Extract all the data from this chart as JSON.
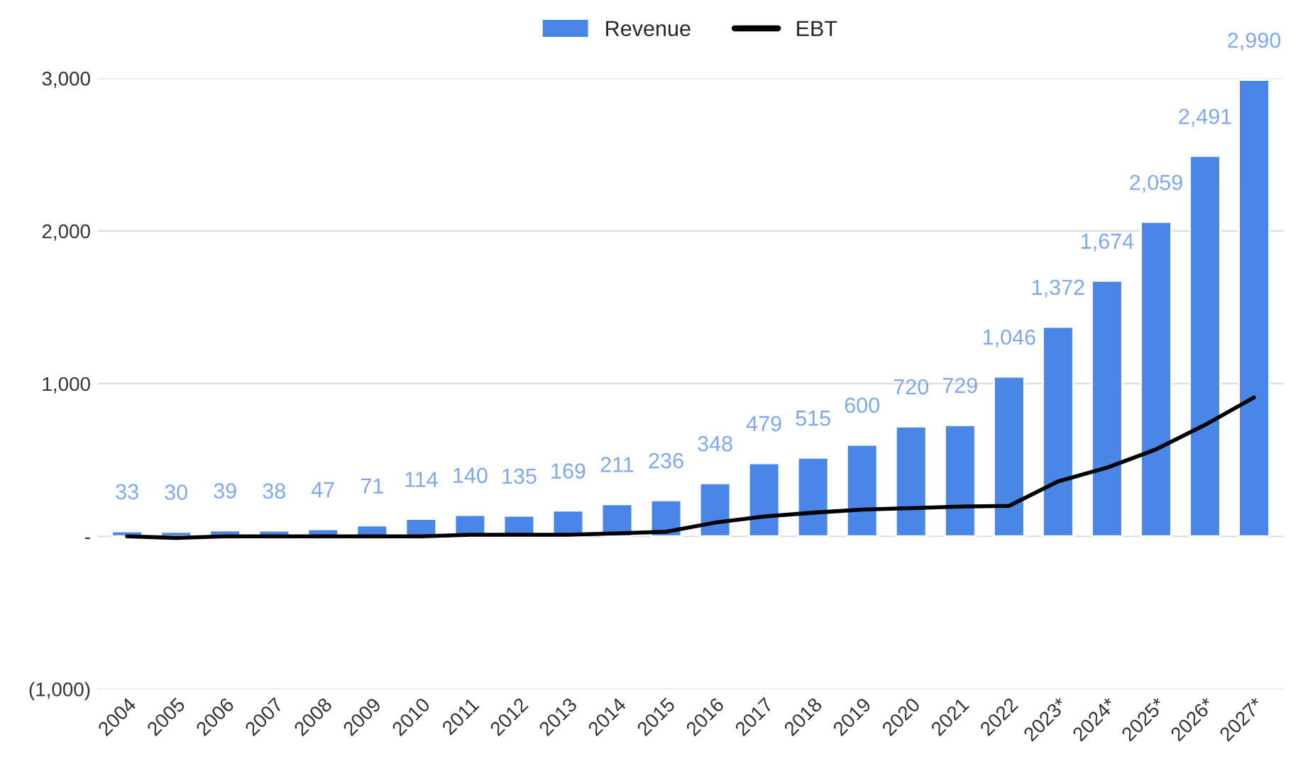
{
  "chart_data": {
    "type": "bar",
    "categories": [
      "2004",
      "2005",
      "2006",
      "2007",
      "2008",
      "2009",
      "2010",
      "2011",
      "2012",
      "2013",
      "2014",
      "2015",
      "2016",
      "2017",
      "2018",
      "2019",
      "2020",
      "2021",
      "2022",
      "2023*",
      "2024*",
      "2025*",
      "2026*",
      "2027*"
    ],
    "series": [
      {
        "name": "Revenue",
        "color": "#4a86e8",
        "values": [
          33,
          30,
          39,
          38,
          47,
          71,
          114,
          140,
          135,
          169,
          211,
          236,
          348,
          479,
          515,
          600,
          720,
          729,
          1046,
          1372,
          1674,
          2059,
          2491,
          2990
        ],
        "value_labels": [
          "33",
          "30",
          "39",
          "38",
          "47",
          "71",
          "114",
          "140",
          "135",
          "169",
          "211",
          "236",
          "348",
          "479",
          "515",
          "600",
          "720",
          "729",
          "1,046",
          "1,372",
          "1,674",
          "2,059",
          "2,491",
          "2,990"
        ]
      },
      {
        "name": "EBT",
        "type": "line",
        "color": "#000000",
        "values": [
          0,
          -10,
          0,
          0,
          0,
          0,
          0,
          10,
          10,
          10,
          20,
          30,
          90,
          130,
          155,
          175,
          185,
          195,
          200,
          360,
          450,
          570,
          730,
          910
        ]
      }
    ],
    "ylim": [
      -1000,
      3000
    ],
    "yticks": [
      {
        "value": -1000,
        "label": "(1,000)"
      },
      {
        "value": 0,
        "label": "-"
      },
      {
        "value": 1000,
        "label": "1,000"
      },
      {
        "value": 2000,
        "label": "2,000"
      },
      {
        "value": 3000,
        "label": "3,000"
      }
    ],
    "grid": "y",
    "legend": "top",
    "line_style": "solid",
    "marker": "none"
  }
}
